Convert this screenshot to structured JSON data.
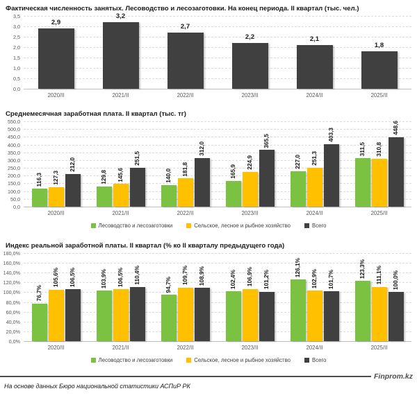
{
  "page": {
    "background": "#ffffff"
  },
  "colors": {
    "green": "#7CC242",
    "yellow": "#FFC000",
    "dark": "#404040",
    "grid": "#dcdcdc",
    "axis_text": "#595959"
  },
  "chart_data": [
    {
      "type": "bar",
      "title": "Фактическая численность занятых. Лесоводство и лесозаготовки. На конец периода. II квартал (тыс. чел.)",
      "categories": [
        "2020/II",
        "2021/II",
        "2022/II",
        "2023/II",
        "2024/II",
        "2025/II"
      ],
      "values": [
        2.9,
        3.2,
        2.7,
        2.2,
        2.1,
        1.8
      ],
      "labels": [
        "2,9",
        "3,2",
        "2,7",
        "2,2",
        "2,1",
        "1,8"
      ],
      "color": "#404040",
      "ylim": [
        0,
        3.5
      ],
      "yticks": [
        "3,5",
        "3,0",
        "2,5",
        "2,0",
        "1,5",
        "1,0",
        "0,5",
        "0,0"
      ],
      "grid": true,
      "legend": false
    },
    {
      "type": "bar",
      "title": "Среднемесячная заработная плата. II квартал (тыс. тг)",
      "categories": [
        "2020/II",
        "2021/II",
        "2022/II",
        "2023/II",
        "2024/II",
        "2025/II"
      ],
      "series": [
        {
          "name": "Лесоводство и лесозаготовки",
          "color": "#7CC242",
          "values": [
            116.3,
            129.8,
            140.0,
            165.9,
            227.0,
            311.5
          ],
          "labels": [
            "116,3",
            "129,8",
            "140,0",
            "165,9",
            "227,0",
            "311,5"
          ]
        },
        {
          "name": "Сельское, лесное и рыбное хозяйство",
          "color": "#FFC000",
          "values": [
            127.3,
            145.6,
            181.8,
            224.9,
            251.3,
            310.8
          ],
          "labels": [
            "127,3",
            "145,6",
            "181,8",
            "224,9",
            "251,3",
            "310,8"
          ]
        },
        {
          "name": "Всего",
          "color": "#404040",
          "values": [
            212.0,
            251.5,
            312.0,
            365.5,
            403.3,
            448.6
          ],
          "labels": [
            "212,0",
            "251,5",
            "312,0",
            "365,5",
            "403,3",
            "448,6"
          ]
        }
      ],
      "ylim": [
        0,
        550
      ],
      "yticks": [
        "550,0",
        "500,0",
        "450,0",
        "400,0",
        "350,0",
        "300,0",
        "250,0",
        "200,0",
        "150,0",
        "100,0",
        "50,0",
        "0,0"
      ],
      "grid": true,
      "legend": true,
      "legend_position": "bottom"
    },
    {
      "type": "bar",
      "title": "Индекс реальной заработной платы. II квартал (% ко II кварталу предыдущего года)",
      "categories": [
        "2020/II",
        "2021/II",
        "2022/II",
        "2023/II",
        "2024/II",
        "2025/II"
      ],
      "series": [
        {
          "name": "Лесоводство и лесозаготовки",
          "color": "#7CC242",
          "values": [
            76.7,
            103.9,
            94.7,
            102.4,
            126.1,
            123.3
          ],
          "labels": [
            "76,7%",
            "103,9%",
            "94,7%",
            "102,4%",
            "126,1%",
            "123,3%"
          ]
        },
        {
          "name": "Сельское, лесное и рыбное хозяйство",
          "color": "#FFC000",
          "values": [
            105.6,
            106.5,
            109.7,
            106.9,
            102.9,
            111.1
          ],
          "labels": [
            "105,6%",
            "106,5%",
            "109,7%",
            "106,9%",
            "102,9%",
            "111,1%"
          ]
        },
        {
          "name": "Всего",
          "color": "#404040",
          "values": [
            106.5,
            110.4,
            108.9,
            101.2,
            101.7,
            100.0
          ],
          "labels": [
            "106,5%",
            "110,4%",
            "108,9%",
            "101,2%",
            "101,7%",
            "100,0%"
          ]
        }
      ],
      "ylim": [
        0,
        180
      ],
      "yticks": [
        "180,0%",
        "160,0%",
        "140,0%",
        "120,0%",
        "100,0%",
        "80,0%",
        "60,0%",
        "40,0%",
        "20,0%",
        "0,0%"
      ],
      "grid": true,
      "legend": true,
      "legend_position": "bottom"
    }
  ],
  "footer": {
    "brand": "Finprom.kz",
    "source": "На основе данных Бюро национальной статистики АСПиР РК"
  }
}
